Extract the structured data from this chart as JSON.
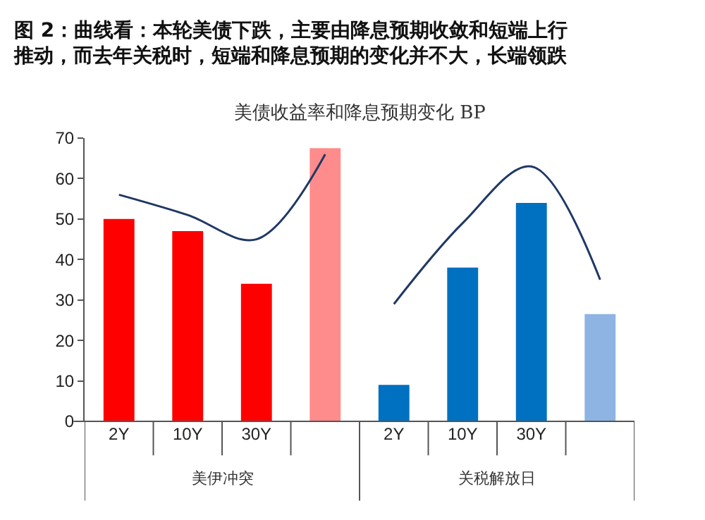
{
  "chart_data": {
    "type": "bar",
    "title": "图 2：曲线看：本轮美债下跌，主要由降息预期收敛和短端上行推动，而去年关税时，短端和降息预期的变化并不大，长端领跌",
    "subtitle": "美债收益率和降息预期变化 BP",
    "categories": [
      "2Y",
      "10Y",
      "30Y",
      null,
      "2Y",
      "10Y",
      "30Y",
      null
    ],
    "series": [
      {
        "colors": [
          "#ff0000",
          "#ff0000",
          "#ff0000",
          "#ff8c8c",
          "#0070c0",
          "#0070c0",
          "#0070c0",
          "#8db4e2"
        ],
        "values": [
          50,
          47,
          34,
          67.5,
          9,
          38,
          54,
          26.5
        ]
      },
      {
        "type": "line",
        "color": "#1f3864",
        "values": [
          56,
          51,
          45,
          66,
          null,
          null,
          null,
          null
        ]
      },
      {
        "type": "line",
        "color": "#1f3864",
        "values": [
          null,
          null,
          null,
          null,
          29,
          49,
          63,
          35
        ]
      }
    ],
    "annotations": [
      "美伊冲突",
      "关税解放日"
    ],
    "ylim": [
      0,
      70
    ],
    "yticks": [
      0,
      10,
      20,
      30,
      40,
      50,
      60,
      70
    ],
    "grid": false,
    "marker": "none"
  }
}
